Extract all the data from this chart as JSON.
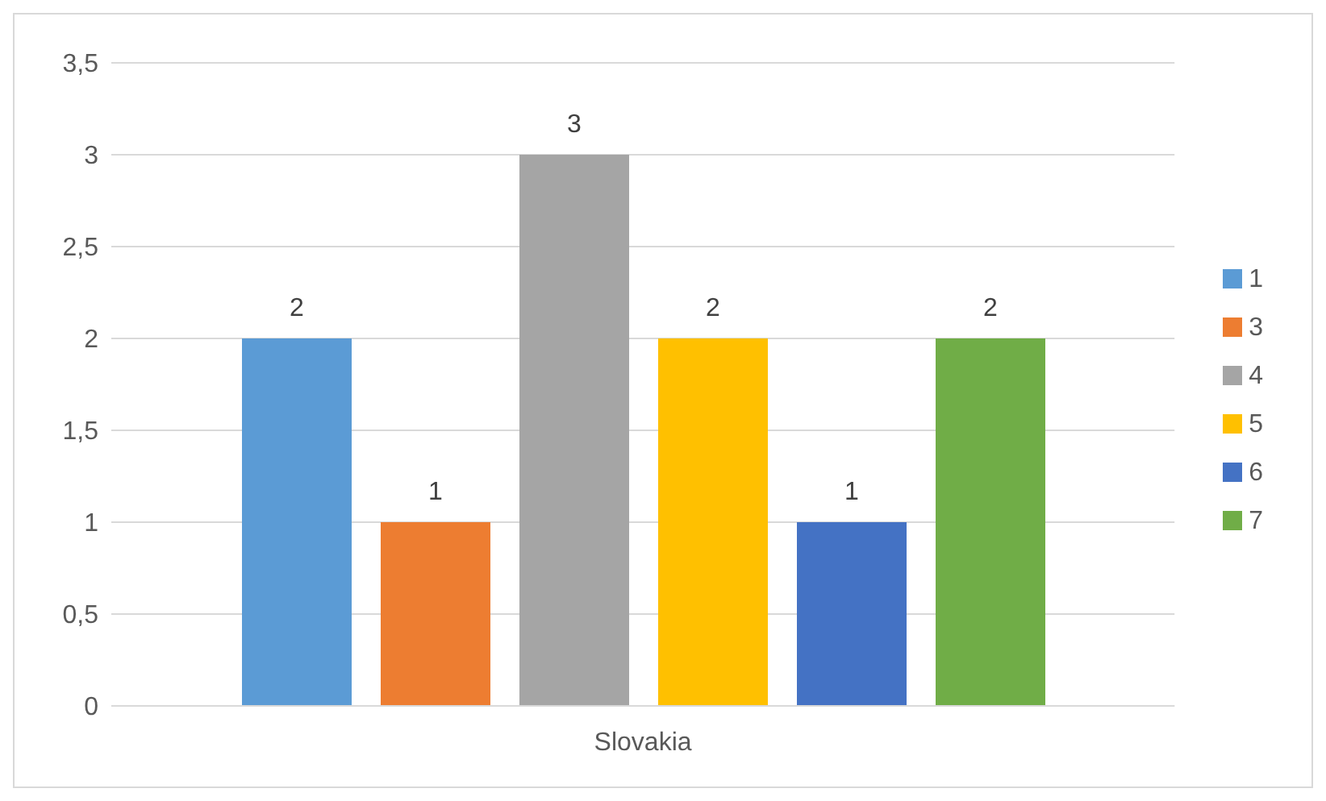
{
  "chart_data": {
    "type": "bar",
    "categories": [
      "Slovakia"
    ],
    "series": [
      {
        "name": "1",
        "color": "#5b9bd5",
        "values": [
          2
        ]
      },
      {
        "name": "3",
        "color": "#ed7d31",
        "values": [
          1
        ]
      },
      {
        "name": "4",
        "color": "#a5a5a5",
        "values": [
          3
        ]
      },
      {
        "name": "5",
        "color": "#ffc000",
        "values": [
          2
        ]
      },
      {
        "name": "6",
        "color": "#4472c4",
        "values": [
          1
        ]
      },
      {
        "name": "7",
        "color": "#70ad47",
        "values": [
          2
        ]
      }
    ],
    "ylim": [
      0,
      3.5
    ],
    "yticks": [
      0,
      {
        "value": 0.5,
        "label": "0,5"
      },
      1,
      {
        "value": 1.5,
        "label": "1,5"
      },
      2,
      {
        "value": 2.5,
        "label": "2,5"
      },
      3,
      {
        "value": 3.5,
        "label": "3,5"
      }
    ],
    "grid": "y",
    "legend": "right",
    "data_labels": true
  }
}
